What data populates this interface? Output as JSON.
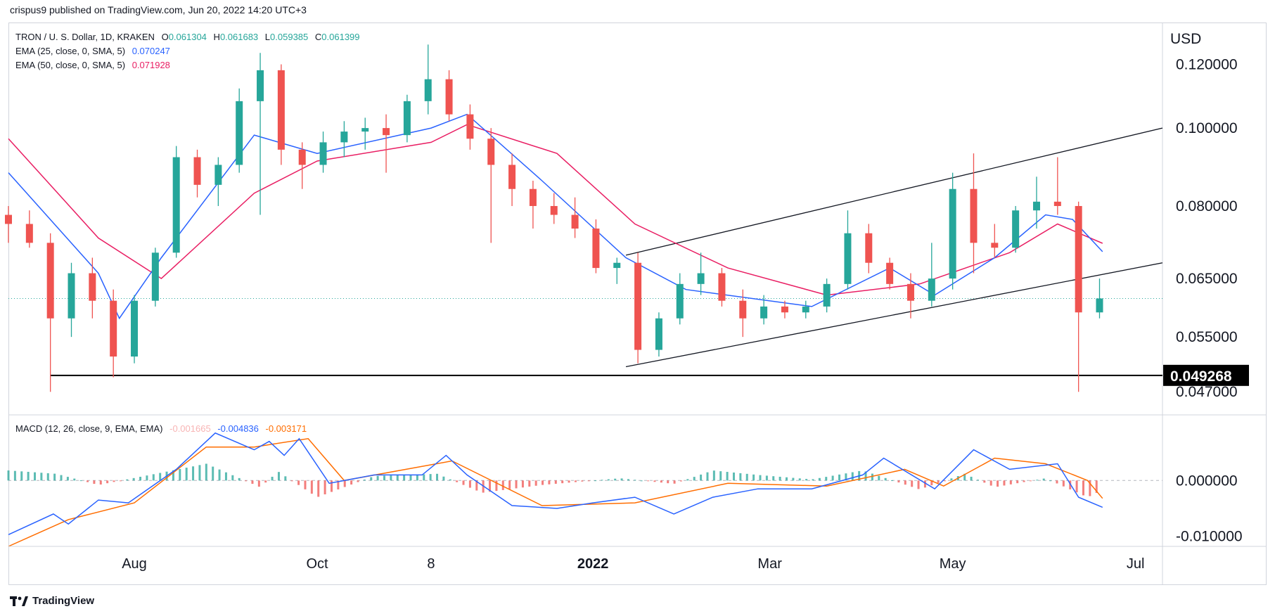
{
  "header": {
    "credit": "crispus9 published on TradingView.com, Jun 20, 2022 14:20 UTC+3"
  },
  "legend": {
    "symbol": "TRON / U. S. Dollar, 1D, KRAKEN",
    "ohlc": {
      "o_label": "O",
      "o": "0.061304",
      "h_label": "H",
      "h": "0.061683",
      "l_label": "L",
      "l": "0.059385",
      "c_label": "C",
      "c": "0.061399"
    },
    "ema25": {
      "label": "EMA (25, close, 0, SMA, 5)",
      "value": "0.070247",
      "color": "#2962ff"
    },
    "ema50": {
      "label": "EMA (50, close, 0, SMA, 5)",
      "value": "0.071928",
      "color": "#e91e63"
    },
    "macd": {
      "label": "MACD (12, 26, close, 9, EMA, EMA)",
      "hist": "-0.001665",
      "macd": "-0.004836",
      "signal": "-0.003171"
    }
  },
  "brand": "TradingView",
  "colors": {
    "up": "#26a69a",
    "down": "#ef5350",
    "ema25": "#2962ff",
    "ema50": "#e91e63",
    "macd": "#2962ff",
    "signal": "#ff6d00"
  },
  "chart_data": [
    {
      "type": "candlestick",
      "title": "TRON / U. S. Dollar, 1D, KRAKEN",
      "ylabel": "USD",
      "yscale": "log",
      "ylim": [
        0.044,
        0.135
      ],
      "y_ticks": [
        "0.120000",
        "0.100000",
        "0.080000",
        "0.065000",
        "0.055000",
        "0.047000"
      ],
      "x_ticks": [
        "Aug",
        "Oct",
        "8",
        "2022",
        "Mar",
        "May",
        "Jul"
      ],
      "x_ticks_dates": [
        "2021-08-01",
        "2021-10-01",
        "2021-11-08",
        "2022-01-01",
        "2022-03-01",
        "2022-05-01",
        "2022-07-01"
      ],
      "x_range": [
        "2021-06-20",
        "2022-07-10"
      ],
      "current_price_line": 0.061399,
      "horizontal_support": {
        "value": 0.049268,
        "label": "0.049268",
        "from": "2021-07-04"
      },
      "channel_upper": [
        [
          "2022-01-12",
          0.0695
        ],
        [
          "2022-07-10",
          0.1
        ]
      ],
      "channel_lower": [
        [
          "2022-01-12",
          0.0505
        ],
        [
          "2022-07-10",
          0.068
        ]
      ],
      "ema25_path": [
        [
          "2021-06-20",
          0.088
        ],
        [
          "2021-07-20",
          0.066
        ],
        [
          "2021-07-27",
          0.058
        ],
        [
          "2021-08-10",
          0.069
        ],
        [
          "2021-09-10",
          0.098
        ],
        [
          "2021-10-01",
          0.093
        ],
        [
          "2021-11-08",
          0.1
        ],
        [
          "2021-11-20",
          0.104
        ],
        [
          "2021-12-15",
          0.086
        ],
        [
          "2022-01-12",
          0.069
        ],
        [
          "2022-02-01",
          0.063
        ],
        [
          "2022-03-15",
          0.06
        ],
        [
          "2022-04-10",
          0.067
        ],
        [
          "2022-04-25",
          0.062
        ],
        [
          "2022-05-15",
          0.069
        ],
        [
          "2022-06-01",
          0.078
        ],
        [
          "2022-06-10",
          0.077
        ],
        [
          "2022-06-20",
          0.0702
        ]
      ],
      "ema50_path": [
        [
          "2021-06-20",
          0.097
        ],
        [
          "2021-07-20",
          0.073
        ],
        [
          "2021-08-10",
          0.065
        ],
        [
          "2021-09-10",
          0.083
        ],
        [
          "2021-10-01",
          0.091
        ],
        [
          "2021-11-08",
          0.096
        ],
        [
          "2021-11-20",
          0.101
        ],
        [
          "2021-12-20",
          0.093
        ],
        [
          "2022-01-15",
          0.076
        ],
        [
          "2022-02-15",
          0.067
        ],
        [
          "2022-03-20",
          0.062
        ],
        [
          "2022-04-20",
          0.064
        ],
        [
          "2022-05-20",
          0.07
        ],
        [
          "2022-06-05",
          0.076
        ],
        [
          "2022-06-20",
          0.0719
        ]
      ],
      "candles_approx": [
        [
          "2021-06-20",
          0.078,
          0.08,
          0.072,
          0.076
        ],
        [
          "2021-06-27",
          0.076,
          0.079,
          0.071,
          0.072
        ],
        [
          "2021-07-04",
          0.072,
          0.074,
          0.047,
          0.058
        ],
        [
          "2021-07-11",
          0.058,
          0.068,
          0.055,
          0.066
        ],
        [
          "2021-07-18",
          0.066,
          0.069,
          0.058,
          0.061
        ],
        [
          "2021-07-25",
          0.061,
          0.063,
          0.049,
          0.052
        ],
        [
          "2021-08-01",
          0.052,
          0.062,
          0.051,
          0.061
        ],
        [
          "2021-08-08",
          0.061,
          0.071,
          0.06,
          0.07
        ],
        [
          "2021-08-15",
          0.07,
          0.095,
          0.069,
          0.092
        ],
        [
          "2021-08-22",
          0.092,
          0.094,
          0.082,
          0.085
        ],
        [
          "2021-08-29",
          0.085,
          0.092,
          0.08,
          0.09
        ],
        [
          "2021-09-05",
          0.09,
          0.112,
          0.088,
          0.108
        ],
        [
          "2021-09-12",
          0.108,
          0.124,
          0.078,
          0.118
        ],
        [
          "2021-09-19",
          0.118,
          0.12,
          0.09,
          0.094
        ],
        [
          "2021-09-26",
          0.094,
          0.096,
          0.084,
          0.09
        ],
        [
          "2021-10-03",
          0.09,
          0.099,
          0.088,
          0.096
        ],
        [
          "2021-10-10",
          0.096,
          0.102,
          0.092,
          0.099
        ],
        [
          "2021-10-17",
          0.099,
          0.103,
          0.094,
          0.1
        ],
        [
          "2021-10-24",
          0.1,
          0.104,
          0.088,
          0.098
        ],
        [
          "2021-10-31",
          0.098,
          0.11,
          0.096,
          0.108
        ],
        [
          "2021-11-07",
          0.108,
          0.127,
          0.104,
          0.115
        ],
        [
          "2021-11-14",
          0.115,
          0.118,
          0.102,
          0.104
        ],
        [
          "2021-11-21",
          0.104,
          0.107,
          0.094,
          0.097
        ],
        [
          "2021-11-28",
          0.097,
          0.1,
          0.072,
          0.09
        ],
        [
          "2021-12-05",
          0.09,
          0.093,
          0.08,
          0.084
        ],
        [
          "2021-12-12",
          0.084,
          0.086,
          0.075,
          0.08
        ],
        [
          "2021-12-19",
          0.08,
          0.083,
          0.076,
          0.078
        ],
        [
          "2021-12-26",
          0.078,
          0.082,
          0.073,
          0.075
        ],
        [
          "2022-01-02",
          0.075,
          0.077,
          0.066,
          0.067
        ],
        [
          "2022-01-09",
          0.067,
          0.069,
          0.064,
          0.068
        ],
        [
          "2022-01-16",
          0.068,
          0.07,
          0.051,
          0.053
        ],
        [
          "2022-01-23",
          0.053,
          0.059,
          0.052,
          0.058
        ],
        [
          "2022-01-30",
          0.058,
          0.066,
          0.057,
          0.064
        ],
        [
          "2022-02-06",
          0.064,
          0.07,
          0.062,
          0.066
        ],
        [
          "2022-02-13",
          0.066,
          0.067,
          0.06,
          0.061
        ],
        [
          "2022-02-20",
          0.061,
          0.063,
          0.055,
          0.058
        ],
        [
          "2022-02-27",
          0.058,
          0.062,
          0.057,
          0.06
        ],
        [
          "2022-03-06",
          0.06,
          0.061,
          0.058,
          0.059
        ],
        [
          "2022-03-13",
          0.059,
          0.061,
          0.058,
          0.06
        ],
        [
          "2022-03-20",
          0.06,
          0.065,
          0.059,
          0.064
        ],
        [
          "2022-03-27",
          0.064,
          0.079,
          0.063,
          0.074
        ],
        [
          "2022-04-03",
          0.074,
          0.076,
          0.066,
          0.068
        ],
        [
          "2022-04-10",
          0.068,
          0.069,
          0.063,
          0.064
        ],
        [
          "2022-04-17",
          0.064,
          0.066,
          0.058,
          0.061
        ],
        [
          "2022-04-24",
          0.061,
          0.072,
          0.06,
          0.065
        ],
        [
          "2022-05-01",
          0.065,
          0.088,
          0.063,
          0.084
        ],
        [
          "2022-05-08",
          0.084,
          0.093,
          0.066,
          0.072
        ],
        [
          "2022-05-15",
          0.072,
          0.076,
          0.069,
          0.071
        ],
        [
          "2022-05-22",
          0.071,
          0.08,
          0.07,
          0.079
        ],
        [
          "2022-05-29",
          0.079,
          0.087,
          0.075,
          0.081
        ],
        [
          "2022-06-05",
          0.081,
          0.092,
          0.078,
          0.08
        ],
        [
          "2022-06-12",
          0.08,
          0.081,
          0.047,
          0.059
        ],
        [
          "2022-06-19",
          0.059,
          0.065,
          0.058,
          0.0614
        ]
      ]
    },
    {
      "type": "macd",
      "title": "MACD (12, 26, close, 9, EMA, EMA)",
      "ylim": [
        -0.0118,
        0.0115
      ],
      "y_ticks": [
        "0.000000",
        "-0.010000"
      ],
      "y_ticks_values": [
        0,
        -0.01
      ],
      "macd_path": [
        [
          "2021-06-20",
          -0.0097
        ],
        [
          "2021-07-05",
          -0.006
        ],
        [
          "2021-07-10",
          -0.0078
        ],
        [
          "2021-07-20",
          -0.0035
        ],
        [
          "2021-07-30",
          -0.004
        ],
        [
          "2021-08-15",
          0.002
        ],
        [
          "2021-08-28",
          0.0085
        ],
        [
          "2021-09-10",
          0.0055
        ],
        [
          "2021-09-15",
          0.007
        ],
        [
          "2021-09-20",
          0.0045
        ],
        [
          "2021-09-25",
          0.0075
        ],
        [
          "2021-10-05",
          -0.0005
        ],
        [
          "2021-10-20",
          0.001
        ],
        [
          "2021-11-05",
          0.001
        ],
        [
          "2021-11-13",
          0.0045
        ],
        [
          "2021-11-20",
          0.001
        ],
        [
          "2021-12-05",
          -0.0045
        ],
        [
          "2021-12-20",
          -0.005
        ],
        [
          "2022-01-01",
          -0.004
        ],
        [
          "2022-01-15",
          -0.003
        ],
        [
          "2022-01-28",
          -0.006
        ],
        [
          "2022-02-10",
          -0.003
        ],
        [
          "2022-02-25",
          -0.0015
        ],
        [
          "2022-03-15",
          -0.0015
        ],
        [
          "2022-04-01",
          0.001
        ],
        [
          "2022-04-08",
          0.004
        ],
        [
          "2022-04-25",
          -0.0015
        ],
        [
          "2022-05-08",
          0.0055
        ],
        [
          "2022-05-20",
          0.002
        ],
        [
          "2022-06-05",
          0.003
        ],
        [
          "2022-06-12",
          -0.003
        ],
        [
          "2022-06-20",
          -0.0048
        ]
      ],
      "signal_path": [
        [
          "2021-06-20",
          -0.0118
        ],
        [
          "2021-07-10",
          -0.007
        ],
        [
          "2021-08-01",
          -0.004
        ],
        [
          "2021-08-25",
          0.006
        ],
        [
          "2021-09-10",
          0.006
        ],
        [
          "2021-09-28",
          0.0075
        ],
        [
          "2021-10-10",
          0.0
        ],
        [
          "2021-11-15",
          0.0035
        ],
        [
          "2021-12-15",
          -0.0045
        ],
        [
          "2022-01-15",
          -0.004
        ],
        [
          "2022-02-15",
          -0.0005
        ],
        [
          "2022-03-20",
          -0.001
        ],
        [
          "2022-04-15",
          0.002
        ],
        [
          "2022-04-28",
          -0.001
        ],
        [
          "2022-05-15",
          0.004
        ],
        [
          "2022-06-01",
          0.003
        ],
        [
          "2022-06-15",
          0.0
        ],
        [
          "2022-06-20",
          -0.0032
        ]
      ],
      "hist_approx": [
        [
          "2021-06-20",
          0.0018
        ],
        [
          "2021-07-06",
          0.0012
        ],
        [
          "2021-07-20",
          -0.0008
        ],
        [
          "2021-08-10",
          0.0014
        ],
        [
          "2021-08-25",
          0.003
        ],
        [
          "2021-09-12",
          -0.0012
        ],
        [
          "2021-09-18",
          0.0016
        ],
        [
          "2021-10-01",
          -0.003
        ],
        [
          "2021-10-20",
          0.0008
        ],
        [
          "2021-11-10",
          0.0012
        ],
        [
          "2021-11-25",
          -0.0022
        ],
        [
          "2021-12-15",
          -0.0008
        ],
        [
          "2022-01-10",
          0.0004
        ],
        [
          "2022-01-28",
          -0.0006
        ],
        [
          "2022-02-10",
          0.0018
        ],
        [
          "2022-02-25",
          0.001
        ],
        [
          "2022-03-15",
          0.0002
        ],
        [
          "2022-04-01",
          0.0018
        ],
        [
          "2022-04-20",
          -0.0016
        ],
        [
          "2022-05-05",
          0.0012
        ],
        [
          "2022-05-15",
          -0.0012
        ],
        [
          "2022-06-01",
          0.0004
        ],
        [
          "2022-06-15",
          -0.003
        ],
        [
          "2022-06-20",
          -0.0017
        ]
      ]
    }
  ]
}
